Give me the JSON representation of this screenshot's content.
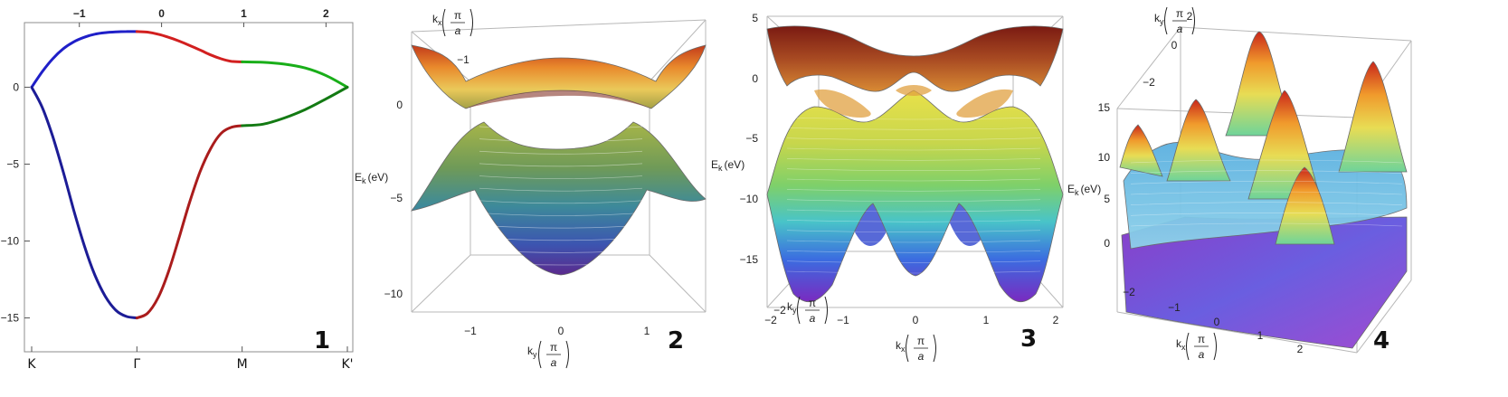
{
  "chart_data": [
    {
      "type": "line",
      "panel_number": "1",
      "x_points": [
        "K",
        "Γ",
        "M",
        "K'"
      ],
      "top_ticks": [
        "−1",
        "0",
        "1",
        "2"
      ],
      "y_ticks": [
        "0",
        "−5",
        "−10",
        "−15"
      ],
      "ylim": [
        -17.2,
        4.2
      ],
      "series": [
        {
          "segment": "K-Γ",
          "color": "#1f1fc8",
          "x": [
            0,
            0.1,
            0.2,
            0.3,
            0.4,
            0.5,
            0.6,
            0.7,
            0.8,
            0.9,
            1.0
          ],
          "values": [
            0,
            1.0,
            1.85,
            2.5,
            2.95,
            3.25,
            3.45,
            3.55,
            3.6,
            3.62,
            3.62
          ]
        },
        {
          "segment": "Γ-M",
          "color": "#d21f1f",
          "x": [
            1.0,
            1.1,
            1.2,
            1.3,
            1.4,
            1.5,
            1.6,
            1.7,
            1.8,
            1.9,
            2.0
          ],
          "values": [
            3.62,
            3.58,
            3.45,
            3.25,
            3.0,
            2.72,
            2.42,
            2.1,
            1.85,
            1.68,
            1.65
          ]
        },
        {
          "segment": "M-K'",
          "color": "#19ae19",
          "x": [
            2.0,
            2.2,
            2.4,
            2.6,
            2.8,
            3.0
          ],
          "values": [
            1.65,
            1.62,
            1.5,
            1.25,
            0.75,
            0
          ]
        },
        {
          "segment": "K-Γ",
          "color": "#1c1c96",
          "x": [
            0,
            0.1,
            0.2,
            0.3,
            0.4,
            0.5,
            0.6,
            0.7,
            0.8,
            0.9,
            1.0
          ],
          "values": [
            0,
            -1.3,
            -3.2,
            -5.5,
            -8.0,
            -10.3,
            -12.2,
            -13.6,
            -14.5,
            -14.9,
            -15.0
          ]
        },
        {
          "segment": "Γ-M",
          "color": "#aa1c1c",
          "x": [
            1.0,
            1.1,
            1.2,
            1.3,
            1.4,
            1.5,
            1.6,
            1.7,
            1.8,
            1.9,
            2.0
          ],
          "values": [
            -15.0,
            -14.7,
            -13.7,
            -12.0,
            -9.8,
            -7.5,
            -5.5,
            -4.0,
            -3.0,
            -2.6,
            -2.5
          ]
        },
        {
          "segment": "M-K'",
          "color": "#137a13",
          "x": [
            2.0,
            2.2,
            2.4,
            2.6,
            2.8,
            3.0
          ],
          "values": [
            -2.5,
            -2.4,
            -2.0,
            -1.45,
            -0.75,
            0
          ]
        }
      ]
    },
    {
      "type": "surface",
      "panel_number": "2",
      "ylabel": "E",
      "ylabel_sub": "k",
      "ylabel_unit": "(eV)",
      "z_ticks": [
        "0",
        "−5",
        "−10"
      ],
      "ky_ticks": [
        "−1",
        "0",
        "1"
      ],
      "kx_ticks": [
        "−1"
      ],
      "ky_label": "k",
      "ky_sub": "y",
      "kx_label": "k",
      "kx_sub": "x",
      "unit_num": "π",
      "unit_den": "a"
    },
    {
      "type": "surface",
      "panel_number": "3",
      "ylabel": "E",
      "ylabel_sub": "k",
      "ylabel_unit": "(eV)",
      "z_ticks": [
        "5",
        "0",
        "−5",
        "−10",
        "−15"
      ],
      "kx_ticks": [
        "−2",
        "−1",
        "0",
        "1",
        "2"
      ],
      "ky_ticks": [
        "−2"
      ],
      "kx_label": "k",
      "kx_sub": "x",
      "ky_label": "k",
      "ky_sub": "y",
      "unit_num": "π",
      "unit_den": "a"
    },
    {
      "type": "surface",
      "panel_number": "4",
      "ylabel": "E",
      "ylabel_sub": "k",
      "ylabel_unit": "(eV)",
      "z_ticks": [
        "15",
        "10",
        "5",
        "0"
      ],
      "ky_ticks": [
        "2",
        "0",
        "−2"
      ],
      "kx_ticks": [
        "−2",
        "−1",
        "0",
        "1",
        "2"
      ],
      "ky_label": "k",
      "ky_sub": "y",
      "kx_label": "k",
      "kx_sub": "x",
      "unit_num": "π",
      "unit_den": "a"
    }
  ]
}
